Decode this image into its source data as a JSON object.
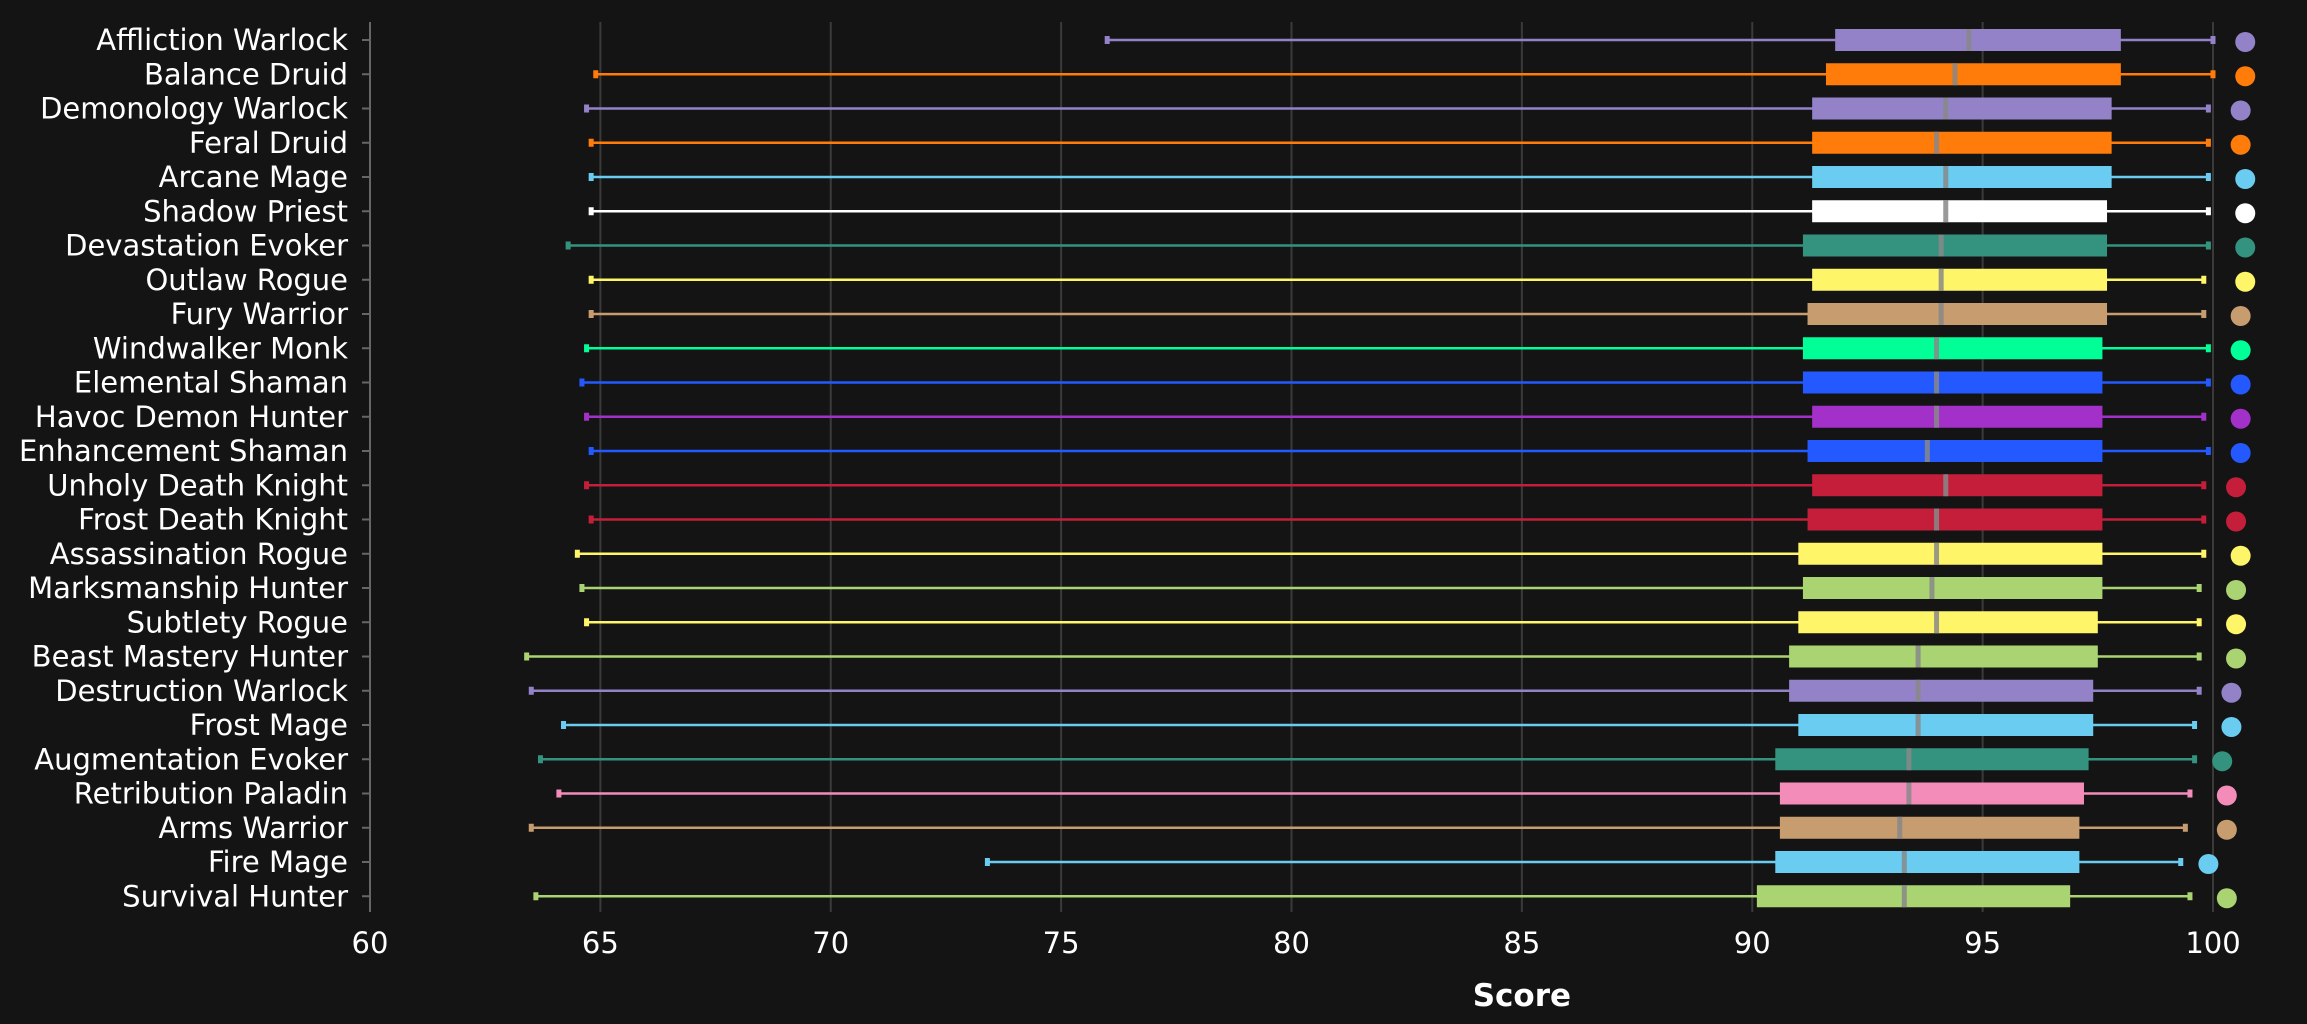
{
  "chart_data": {
    "type": "boxplot",
    "title": "",
    "xlabel": "Score",
    "ylabel": "",
    "xlim": [
      60,
      100
    ],
    "xticks": [
      60,
      65,
      70,
      75,
      80,
      85,
      90,
      95,
      100
    ],
    "grid": "vertical",
    "legend": "none",
    "series": [
      {
        "name": "Affliction Warlock",
        "color": "#9482c9",
        "min": 76.0,
        "q1": 91.8,
        "median": 94.7,
        "q3": 98.0,
        "max": 100.0,
        "dot": 100.7
      },
      {
        "name": "Balance Druid",
        "color": "#ff7c0a",
        "min": 64.9,
        "q1": 91.6,
        "median": 94.4,
        "q3": 98.0,
        "max": 100.0,
        "dot": 100.7
      },
      {
        "name": "Demonology Warlock",
        "color": "#9482c9",
        "min": 64.7,
        "q1": 91.3,
        "median": 94.2,
        "q3": 97.8,
        "max": 99.9,
        "dot": 100.6
      },
      {
        "name": "Feral Druid",
        "color": "#ff7c0a",
        "min": 64.8,
        "q1": 91.3,
        "median": 94.0,
        "q3": 97.8,
        "max": 99.9,
        "dot": 100.6
      },
      {
        "name": "Arcane Mage",
        "color": "#69ccf0",
        "min": 64.8,
        "q1": 91.3,
        "median": 94.2,
        "q3": 97.8,
        "max": 99.9,
        "dot": 100.7
      },
      {
        "name": "Shadow Priest",
        "color": "#ffffff",
        "min": 64.8,
        "q1": 91.3,
        "median": 94.2,
        "q3": 97.7,
        "max": 99.9,
        "dot": 100.7
      },
      {
        "name": "Devastation Evoker",
        "color": "#33937f",
        "min": 64.3,
        "q1": 91.1,
        "median": 94.1,
        "q3": 97.7,
        "max": 99.9,
        "dot": 100.7
      },
      {
        "name": "Outlaw Rogue",
        "color": "#fff569",
        "min": 64.8,
        "q1": 91.3,
        "median": 94.1,
        "q3": 97.7,
        "max": 99.8,
        "dot": 100.7
      },
      {
        "name": "Fury Warrior",
        "color": "#c79c6e",
        "min": 64.8,
        "q1": 91.2,
        "median": 94.1,
        "q3": 97.7,
        "max": 99.8,
        "dot": 100.6
      },
      {
        "name": "Windwalker Monk",
        "color": "#00ff96",
        "min": 64.7,
        "q1": 91.1,
        "median": 94.0,
        "q3": 97.6,
        "max": 99.9,
        "dot": 100.6
      },
      {
        "name": "Elemental Shaman",
        "color": "#2359ff",
        "min": 64.6,
        "q1": 91.1,
        "median": 94.0,
        "q3": 97.6,
        "max": 99.9,
        "dot": 100.6
      },
      {
        "name": "Havoc Demon Hunter",
        "color": "#a330c9",
        "min": 64.7,
        "q1": 91.3,
        "median": 94.0,
        "q3": 97.6,
        "max": 99.8,
        "dot": 100.6
      },
      {
        "name": "Enhancement Shaman",
        "color": "#2359ff",
        "min": 64.8,
        "q1": 91.2,
        "median": 93.8,
        "q3": 97.6,
        "max": 99.9,
        "dot": 100.6
      },
      {
        "name": "Unholy Death Knight",
        "color": "#c41e3a",
        "min": 64.7,
        "q1": 91.3,
        "median": 94.2,
        "q3": 97.6,
        "max": 99.8,
        "dot": 100.5
      },
      {
        "name": "Frost Death Knight",
        "color": "#c41e3a",
        "min": 64.8,
        "q1": 91.2,
        "median": 94.0,
        "q3": 97.6,
        "max": 99.8,
        "dot": 100.5
      },
      {
        "name": "Assassination Rogue",
        "color": "#fff569",
        "min": 64.5,
        "q1": 91.0,
        "median": 94.0,
        "q3": 97.6,
        "max": 99.8,
        "dot": 100.6
      },
      {
        "name": "Marksmanship Hunter",
        "color": "#aad372",
        "min": 64.6,
        "q1": 91.1,
        "median": 93.9,
        "q3": 97.6,
        "max": 99.7,
        "dot": 100.5
      },
      {
        "name": "Subtlety Rogue",
        "color": "#fff569",
        "min": 64.7,
        "q1": 91.0,
        "median": 94.0,
        "q3": 97.5,
        "max": 99.7,
        "dot": 100.5
      },
      {
        "name": "Beast Mastery Hunter",
        "color": "#aad372",
        "min": 63.4,
        "q1": 90.8,
        "median": 93.6,
        "q3": 97.5,
        "max": 99.7,
        "dot": 100.5
      },
      {
        "name": "Destruction Warlock",
        "color": "#9482c9",
        "min": 63.5,
        "q1": 90.8,
        "median": 93.6,
        "q3": 97.4,
        "max": 99.7,
        "dot": 100.4
      },
      {
        "name": "Frost Mage",
        "color": "#69ccf0",
        "min": 64.2,
        "q1": 91.0,
        "median": 93.6,
        "q3": 97.4,
        "max": 99.6,
        "dot": 100.4
      },
      {
        "name": "Augmentation Evoker",
        "color": "#33937f",
        "min": 63.7,
        "q1": 90.5,
        "median": 93.4,
        "q3": 97.3,
        "max": 99.6,
        "dot": 100.2
      },
      {
        "name": "Retribution Paladin",
        "color": "#f48cba",
        "min": 64.1,
        "q1": 90.6,
        "median": 93.4,
        "q3": 97.2,
        "max": 99.5,
        "dot": 100.3
      },
      {
        "name": "Arms Warrior",
        "color": "#c79c6e",
        "min": 63.5,
        "q1": 90.6,
        "median": 93.2,
        "q3": 97.1,
        "max": 99.4,
        "dot": 100.3
      },
      {
        "name": "Fire Mage",
        "color": "#69ccf0",
        "min": 73.4,
        "q1": 90.5,
        "median": 93.3,
        "q3": 97.1,
        "max": 99.3,
        "dot": 99.9
      },
      {
        "name": "Survival Hunter",
        "color": "#aad372",
        "min": 63.6,
        "q1": 90.1,
        "median": 93.3,
        "q3": 96.9,
        "max": 99.5,
        "dot": 100.3
      }
    ]
  },
  "colors": {
    "background": "#141414",
    "grid": "#3a3a3a",
    "axis": "#666666",
    "text": "#ffffff",
    "median_mark": "#888888"
  }
}
